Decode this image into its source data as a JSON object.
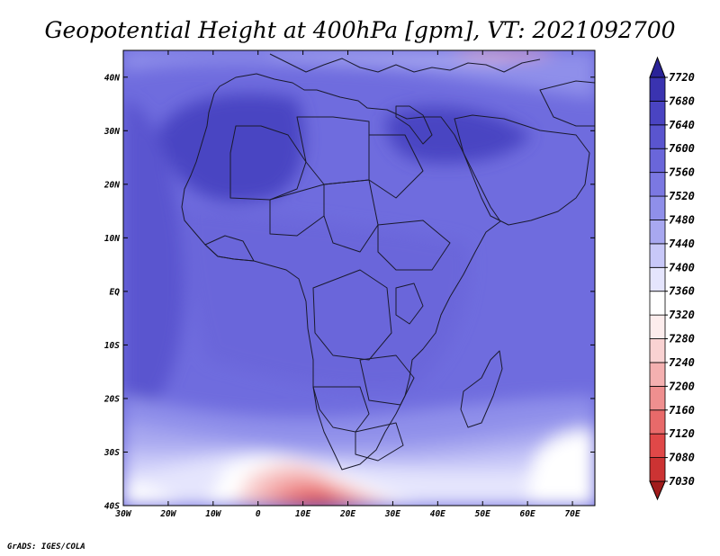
{
  "title": "Geopotential Height at 400hPa [gpm], VT: 2021092700",
  "credit": "GrADS: IGES/COLA",
  "map": {
    "lon_range": [
      -30,
      75
    ],
    "lat_range": [
      -40,
      45
    ],
    "lat_ticks": [
      "40N",
      "30N",
      "20N",
      "10N",
      "EQ",
      "10S",
      "20S",
      "30S",
      "40S"
    ],
    "lon_ticks": [
      "30W",
      "20W",
      "10W",
      "0",
      "10E",
      "20E",
      "30E",
      "40E",
      "50E",
      "60E",
      "70E"
    ]
  },
  "colorbar": {
    "levels": [
      "7030",
      "7080",
      "7120",
      "7160",
      "7200",
      "7240",
      "7280",
      "7320",
      "7360",
      "7400",
      "7440",
      "7480",
      "7520",
      "7560",
      "7600",
      "7640",
      "7680",
      "7720"
    ],
    "colors": [
      "#a11c1c",
      "#cc3333",
      "#e04848",
      "#e86a6a",
      "#ef8f8f",
      "#f4b0b0",
      "#f9d2d2",
      "#fdeded",
      "#ffffff",
      "#e5e5fd",
      "#c8c8f8",
      "#a8a8f0",
      "#8f8fea",
      "#7b78e2",
      "#6a66da",
      "#5a55cf",
      "#4a44c2",
      "#3a33b0",
      "#2a2398"
    ]
  }
}
